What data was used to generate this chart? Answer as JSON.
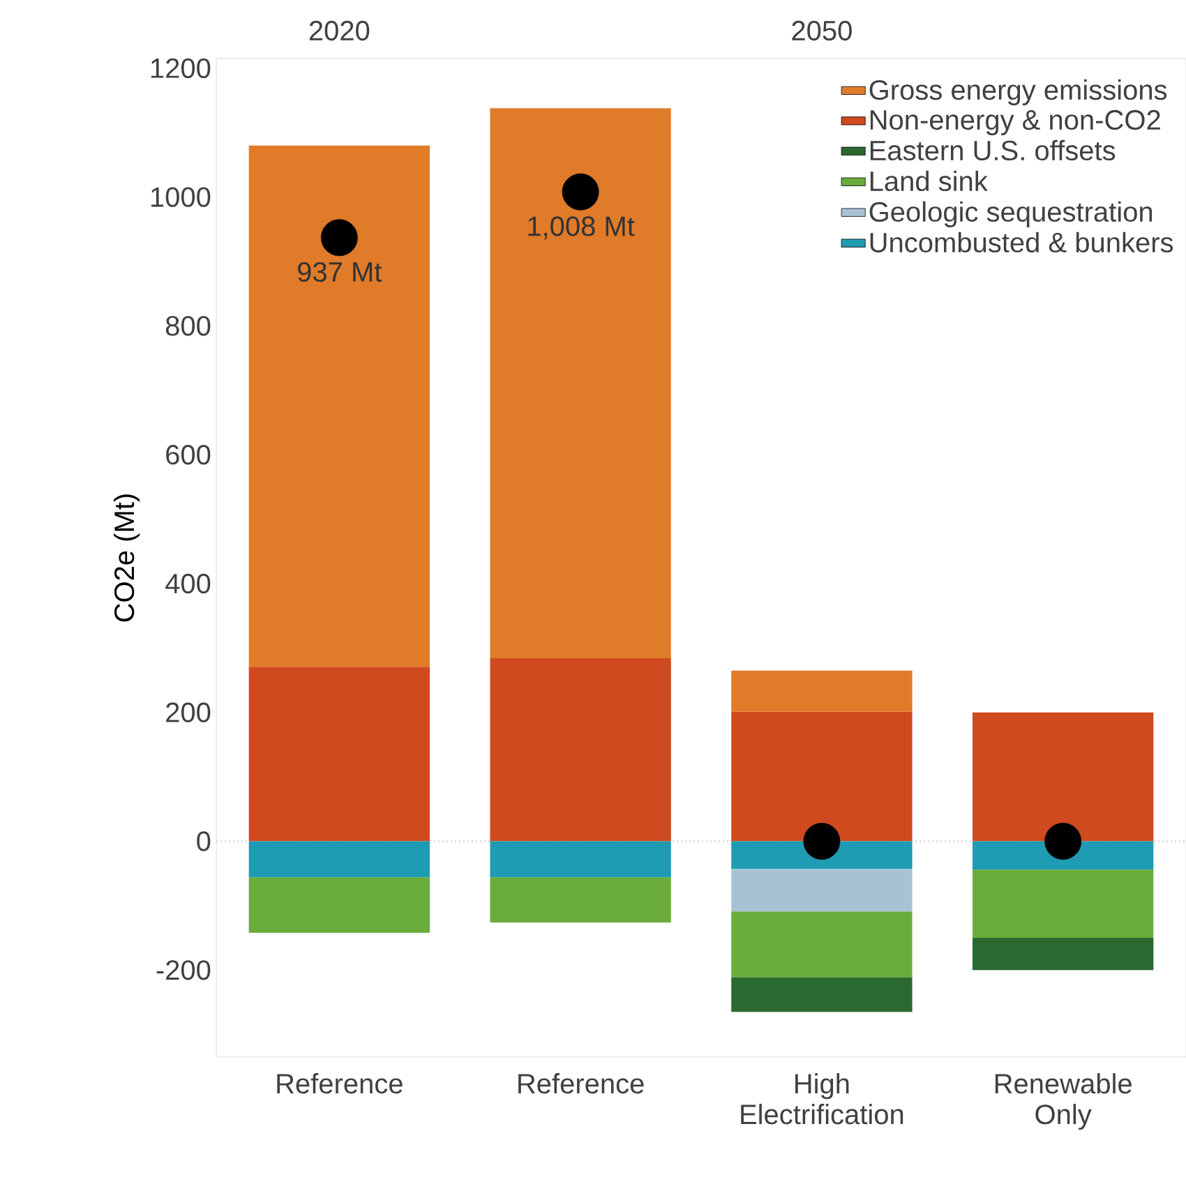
{
  "chart_data": {
    "type": "bar",
    "stacked": true,
    "ylabel": "CO2e (Mt)",
    "categories": [
      "Reference",
      "Reference",
      "High Electrification",
      "Renewable Only"
    ],
    "annotations": [
      "2020",
      "2050"
    ],
    "series": [
      {
        "name": "Non-energy & non-CO2",
        "color": "#cf4a1e",
        "values": [
          271,
          284,
          201,
          200
        ]
      },
      {
        "name": "Gross energy emissions",
        "color": "#e07b2a",
        "values": [
          809,
          854,
          64,
          null
        ]
      },
      {
        "name": "Uncombusted & bunkers",
        "color": "#1f9bb3",
        "values": [
          -56,
          -56,
          -43,
          -44
        ]
      },
      {
        "name": "Geologic sequestration",
        "color": "#a9c2d3",
        "values": [
          null,
          null,
          -66,
          null
        ]
      },
      {
        "name": "Land sink",
        "color": "#6aac3c",
        "values": [
          -86,
          -70,
          -102,
          -106
        ]
      },
      {
        "name": "Eastern U.S. offsets",
        "color": "#2a6a30",
        "values": [
          null,
          null,
          -54,
          -50
        ]
      },
      {
        "type": "scatter",
        "color": "#000000",
        "values": [
          937,
          1008,
          0,
          0
        ],
        "value_labels": [
          "937 Mt",
          "1,008 Mt",
          null,
          null
        ]
      }
    ],
    "ylim": [
      -335,
      1215
    ],
    "yticks": [
      -200,
      0,
      200,
      400,
      600,
      800,
      1000,
      1200
    ],
    "ref_lines": [
      {
        "axis": "y",
        "value": 0,
        "line_style": "dotted",
        "color": "#c8c8c8"
      }
    ],
    "legend": "top right",
    "marker": "circle"
  }
}
